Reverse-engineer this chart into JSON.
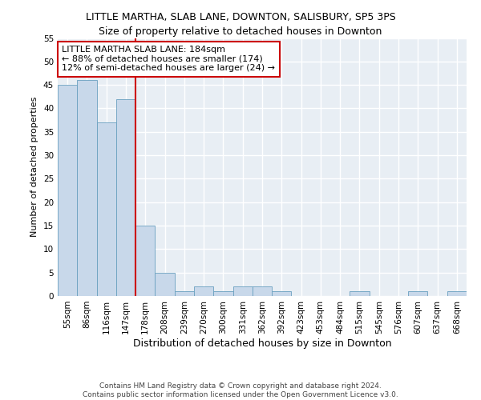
{
  "title1": "LITTLE MARTHA, SLAB LANE, DOWNTON, SALISBURY, SP5 3PS",
  "title2": "Size of property relative to detached houses in Downton",
  "xlabel": "Distribution of detached houses by size in Downton",
  "ylabel": "Number of detached properties",
  "footer1": "Contains HM Land Registry data © Crown copyright and database right 2024.",
  "footer2": "Contains public sector information licensed under the Open Government Licence v3.0.",
  "bin_labels": [
    "55sqm",
    "86sqm",
    "116sqm",
    "147sqm",
    "178sqm",
    "208sqm",
    "239sqm",
    "270sqm",
    "300sqm",
    "331sqm",
    "362sqm",
    "392sqm",
    "423sqm",
    "453sqm",
    "484sqm",
    "515sqm",
    "545sqm",
    "576sqm",
    "607sqm",
    "637sqm",
    "668sqm"
  ],
  "bar_values": [
    45,
    46,
    37,
    42,
    15,
    5,
    1,
    2,
    1,
    2,
    2,
    1,
    0,
    0,
    0,
    1,
    0,
    0,
    1,
    0,
    1
  ],
  "bar_color": "#c8d8ea",
  "bar_edge_color": "#6aa0c0",
  "vline_x_index": 4,
  "ylim": [
    0,
    55
  ],
  "yticks": [
    0,
    5,
    10,
    15,
    20,
    25,
    30,
    35,
    40,
    45,
    50,
    55
  ],
  "annotation_line1": "LITTLE MARTHA SLAB LANE: 184sqm",
  "annotation_line2": "← 88% of detached houses are smaller (174)",
  "annotation_line3": "12% of semi-detached houses are larger (24) →",
  "annotation_box_color": "#ffffff",
  "annotation_border_color": "#cc0000",
  "vline_color": "#cc0000",
  "plot_bg_color": "#e8eef4",
  "fig_bg_color": "#ffffff",
  "grid_color": "#ffffff",
  "title1_fontsize": 9,
  "title2_fontsize": 9,
  "ylabel_fontsize": 8,
  "xlabel_fontsize": 9,
  "tick_fontsize": 7.5,
  "annotation_fontsize": 8,
  "footer_fontsize": 6.5
}
